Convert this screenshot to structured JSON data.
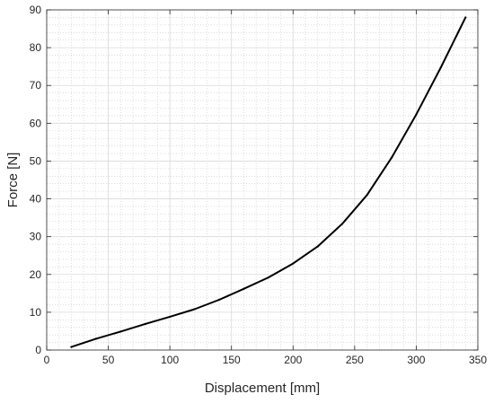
{
  "chart_data": {
    "type": "line",
    "title": "",
    "xlabel": "Displacement [mm]",
    "ylabel": "Force [N]",
    "xlim": [
      0,
      350
    ],
    "ylim": [
      0,
      90
    ],
    "x_ticks": [
      0,
      50,
      100,
      150,
      200,
      250,
      300,
      350
    ],
    "y_ticks": [
      0,
      10,
      20,
      30,
      40,
      50,
      60,
      70,
      80,
      90
    ],
    "x_tick_labels": [
      "0",
      "50",
      "100",
      "150",
      "200",
      "250",
      "300",
      "350"
    ],
    "y_tick_labels": [
      "0",
      "10",
      "20",
      "30",
      "40",
      "50",
      "60",
      "70",
      "80",
      "90"
    ],
    "grid": true,
    "minor_grid": true,
    "legend": "none",
    "series": [
      {
        "color": "#000000",
        "x": [
          20,
          40,
          60,
          80,
          100,
          120,
          140,
          160,
          180,
          200,
          220,
          240,
          260,
          280,
          300,
          320,
          340
        ],
        "y": [
          0.8,
          3.0,
          4.9,
          6.9,
          8.8,
          10.8,
          13.3,
          16.2,
          19.2,
          22.9,
          27.4,
          33.4,
          41.0,
          50.9,
          62.3,
          74.8,
          88.0
        ]
      }
    ]
  }
}
